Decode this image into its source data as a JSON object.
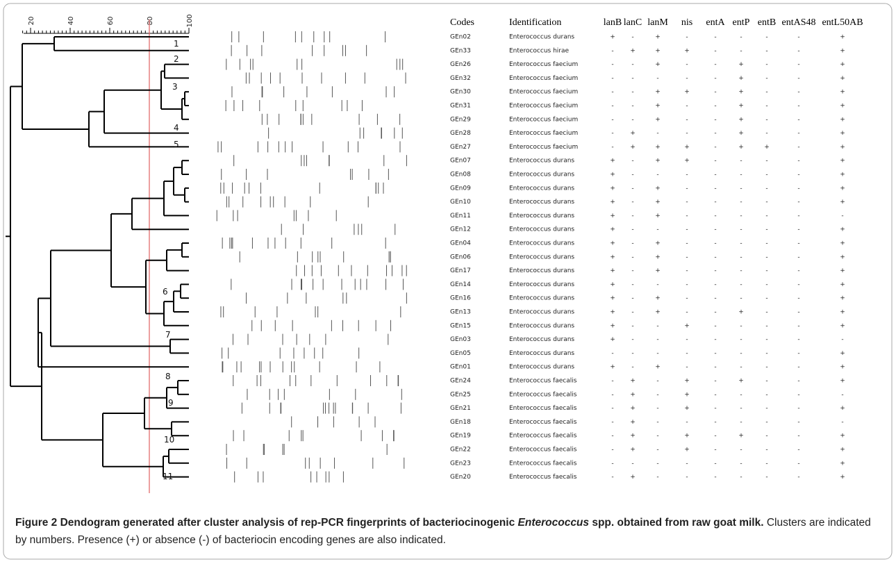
{
  "scale": {
    "ticks": [
      20,
      40,
      60,
      80,
      100
    ]
  },
  "clusters": [
    "1",
    "2",
    "3",
    "4",
    "5",
    "6",
    "7",
    "8",
    "9",
    "10",
    "11"
  ],
  "table": {
    "headers": [
      "Codes",
      "Identification",
      "lanB",
      "lanC",
      "lanM",
      "nis",
      "entA",
      "entP",
      "entB",
      "entAS48",
      "entL50AB"
    ],
    "rows": [
      [
        "GEn02",
        "Enterococcus durans",
        "+",
        "-",
        "+",
        "-",
        "-",
        "-",
        "-",
        "-",
        "+"
      ],
      [
        "GEn33",
        "Enterococcus hirae",
        "-",
        "+",
        "+",
        "+",
        "-",
        "-",
        "-",
        "-",
        "+"
      ],
      [
        "GEn26",
        "Enterococcus faecium",
        "-",
        "-",
        "+",
        "-",
        "-",
        "+",
        "-",
        "-",
        "+"
      ],
      [
        "GEn32",
        "Enterococcus faecium",
        "-",
        "-",
        "-",
        "-",
        "-",
        "+",
        "-",
        "-",
        "+"
      ],
      [
        "GEn30",
        "Enterococcus faecium",
        "-",
        "-",
        "+",
        "+",
        "-",
        "+",
        "-",
        "-",
        "+"
      ],
      [
        "GEn31",
        "Enterococcus faecium",
        "-",
        "-",
        "+",
        "-",
        "-",
        "+",
        "-",
        "-",
        "+"
      ],
      [
        "GEn29",
        "Enterococcus faecium",
        "-",
        "-",
        "+",
        "-",
        "-",
        "+",
        "-",
        "-",
        "+"
      ],
      [
        "GEn28",
        "Enterococcus faecium",
        "-",
        "+",
        "-",
        "-",
        "-",
        "+",
        "-",
        "-",
        "+"
      ],
      [
        "GEn27",
        "Enterococcus faecium",
        "-",
        "+",
        "+",
        "+",
        "-",
        "+",
        "+",
        "-",
        "+"
      ],
      [
        "GEn07",
        "Enterococcus durans",
        "+",
        "-",
        "+",
        "+",
        "-",
        "-",
        "-",
        "-",
        "+"
      ],
      [
        "GEn08",
        "Enterococcus durans",
        "+",
        "-",
        "-",
        "-",
        "-",
        "-",
        "-",
        "-",
        "+"
      ],
      [
        "GEn09",
        "Enterococcus durans",
        "+",
        "-",
        "+",
        "-",
        "-",
        "-",
        "-",
        "-",
        "+"
      ],
      [
        "GEn10",
        "Enterococcus durans",
        "+",
        "-",
        "+",
        "-",
        "-",
        "-",
        "-",
        "-",
        "+"
      ],
      [
        "GEn11",
        "Enterococcus durans",
        "+",
        "-",
        "+",
        "-",
        "-",
        "-",
        "-",
        "-",
        "-"
      ],
      [
        "GEn12",
        "Enterococcus durans",
        "+",
        "-",
        "-",
        "-",
        "-",
        "-",
        "-",
        "-",
        "+"
      ],
      [
        "GEn04",
        "Enterococcus durans",
        "+",
        "-",
        "+",
        "-",
        "-",
        "-",
        "-",
        "-",
        "+"
      ],
      [
        "GEn06",
        "Enterococcus durans",
        "+",
        "-",
        "+",
        "-",
        "-",
        "-",
        "-",
        "-",
        "+"
      ],
      [
        "GEn17",
        "Enterococcus durans",
        "+",
        "-",
        "+",
        "-",
        "-",
        "-",
        "-",
        "-",
        "+"
      ],
      [
        "GEn14",
        "Enterococcus durans",
        "+",
        "-",
        "-",
        "-",
        "-",
        "-",
        "-",
        "-",
        "+"
      ],
      [
        "GEn16",
        "Enterococcus durans",
        "+",
        "-",
        "+",
        "-",
        "-",
        "-",
        "-",
        "-",
        "+"
      ],
      [
        "GEn13",
        "Enterococcus durans",
        "+",
        "-",
        "+",
        "-",
        "-",
        "+",
        "-",
        "-",
        "+"
      ],
      [
        "GEn15",
        "Enterococcus durans",
        "+",
        "-",
        "-",
        "+",
        "-",
        "-",
        "-",
        "-",
        "+"
      ],
      [
        "GEn03",
        "Enterococcus durans",
        "+",
        "-",
        "-",
        "-",
        "-",
        "-",
        "-",
        "-",
        "-"
      ],
      [
        "GEn05",
        "Enterococcus durans",
        "-",
        "-",
        "-",
        "-",
        "-",
        "-",
        "-",
        "-",
        "+"
      ],
      [
        "GEn01",
        "Enterococcus durans",
        "+",
        "-",
        "+",
        "-",
        "-",
        "-",
        "-",
        "-",
        "+"
      ],
      [
        "GEn24",
        "Enterococcus faecalis",
        "-",
        "+",
        "-",
        "+",
        "-",
        "+",
        "-",
        "-",
        "+"
      ],
      [
        "GEn25",
        "Enterococcus faecalis",
        "-",
        "+",
        "-",
        "+",
        "-",
        "-",
        "-",
        "-",
        "-"
      ],
      [
        "GEn21",
        "Enterococcus faecalis",
        "-",
        "+",
        "-",
        "+",
        "-",
        "-",
        "-",
        "-",
        "+"
      ],
      [
        "GEn18",
        "Enterococcus faecalis",
        "-",
        "+",
        "-",
        "-",
        "-",
        "-",
        "-",
        "-",
        "-"
      ],
      [
        "GEn19",
        "Enterococcus faecalis",
        "-",
        "+",
        "-",
        "+",
        "-",
        "+",
        "-",
        "-",
        "+"
      ],
      [
        "GEn22",
        "Enterococcus faecalis",
        "-",
        "+",
        "-",
        "+",
        "-",
        "-",
        "-",
        "-",
        "+"
      ],
      [
        "GEn23",
        "Enterococcus faecalis",
        "-",
        "-",
        "-",
        "-",
        "-",
        "-",
        "-",
        "-",
        "+"
      ],
      [
        "GEn20",
        "Enterococcus faecalis",
        "-",
        "+",
        "-",
        "-",
        "-",
        "-",
        "-",
        "-",
        "+"
      ]
    ]
  },
  "caption": {
    "label": "Figure 2",
    "title_a": "Dendogram generated after cluster analysis of rep-PCR fingerprints of bacteriocinogenic",
    "title_italic": "Enterococcus",
    "title_b": "spp. obtained from raw goat milk.",
    "text": "Clusters are indicated by numbers. Presence (+) or absence (-) of bacteriocin encoding genes are also indicated."
  }
}
